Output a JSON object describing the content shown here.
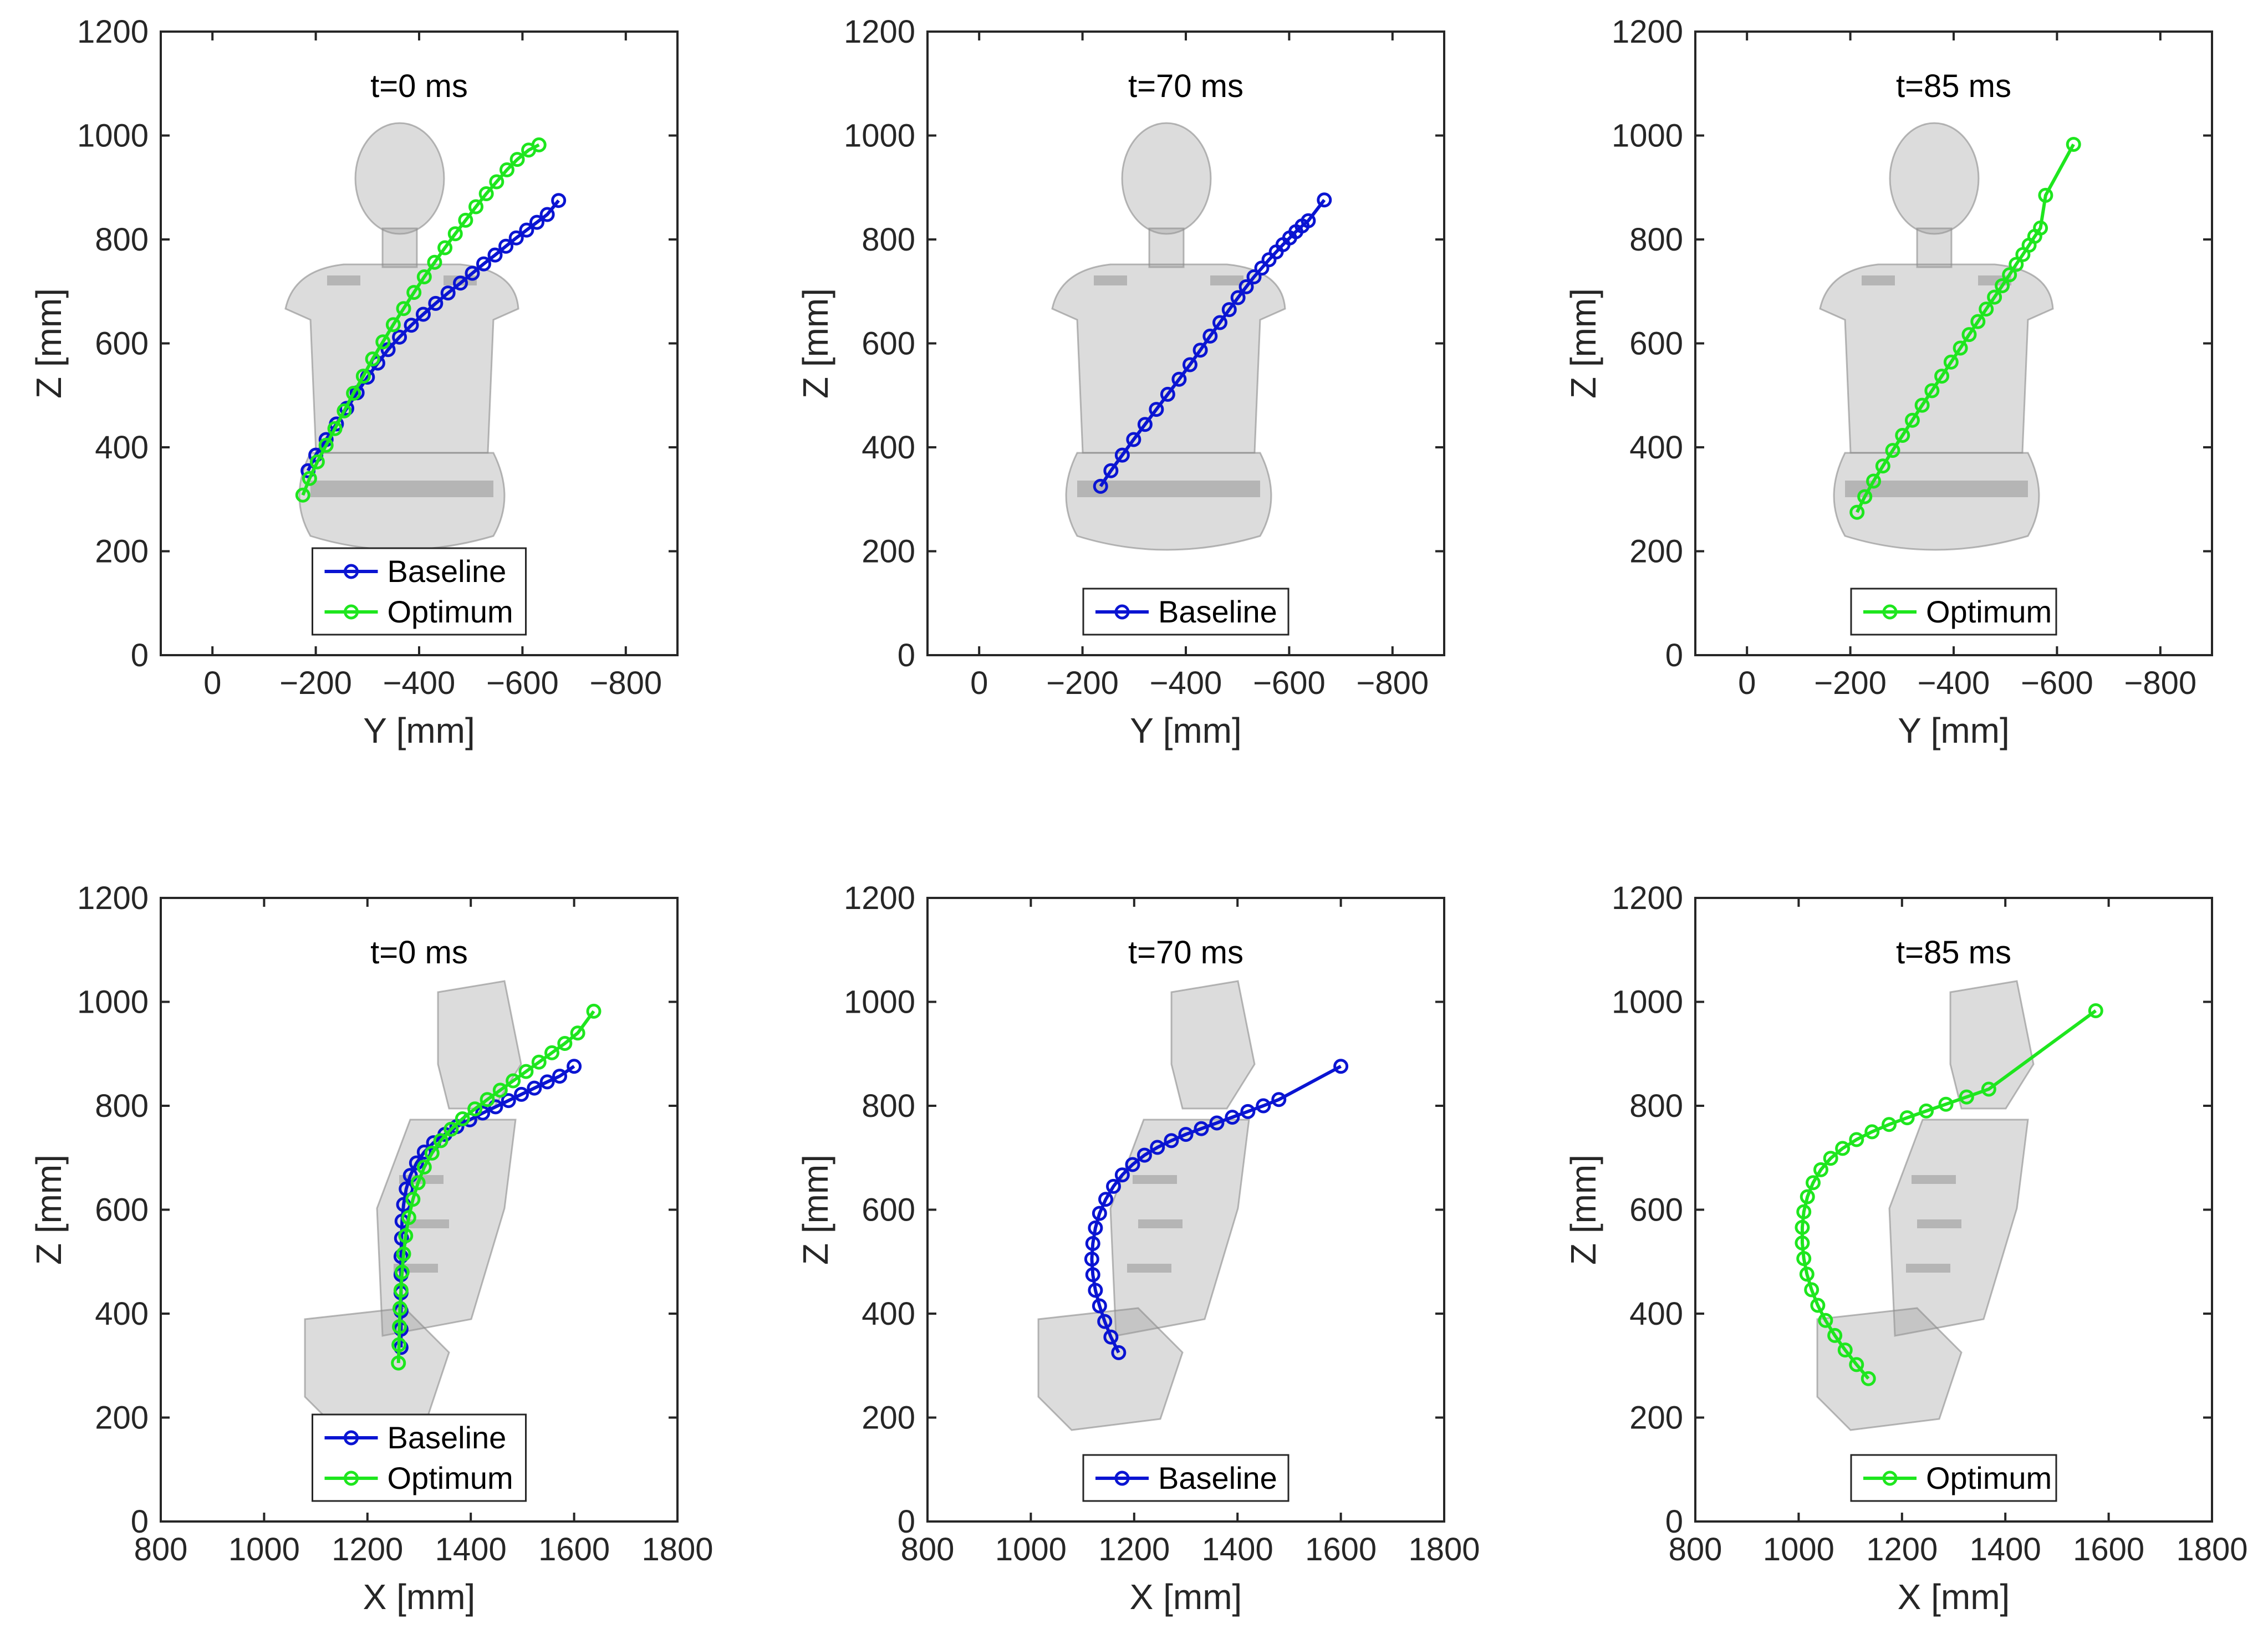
{
  "figure": {
    "layout": "2 rows x 3 columns"
  },
  "colors": {
    "baseline": "#0a14d2",
    "optimum": "#1ee61e",
    "axis": "#262626"
  },
  "chart_data": [
    {
      "type": "line",
      "title": "t=0 ms",
      "xlabel": "Y [mm]",
      "ylabel": "Z [mm]",
      "xlim": [
        100,
        -900
      ],
      "ylim": [
        0,
        1200
      ],
      "xticks": [
        0,
        -200,
        -400,
        -600,
        -800
      ],
      "xtick_labels": [
        "0",
        "−200",
        "−400",
        "−600",
        "−800"
      ],
      "yticks": [
        0,
        200,
        400,
        600,
        800,
        1000,
        1200
      ],
      "ytick_labels": [
        "0",
        "200",
        "400",
        "600",
        "800",
        "1000",
        "1200"
      ],
      "legend": [
        "Baseline",
        "Optimum"
      ],
      "legend_position": "bottom-center",
      "view": "front",
      "series": [
        {
          "name": "Baseline",
          "color": "baseline",
          "x": [
            -185,
            -200,
            -220,
            -240,
            -260,
            -280,
            -300,
            -320,
            -340,
            -362,
            -385,
            -408,
            -432,
            -456,
            -480,
            -503,
            -525,
            -547,
            -568,
            -588,
            -608,
            -628,
            -648,
            -670
          ],
          "y": [
            355,
            385,
            415,
            445,
            475,
            505,
            535,
            562,
            588,
            612,
            635,
            656,
            677,
            697,
            716,
            735,
            753,
            770,
            787,
            803,
            818,
            833,
            848,
            875
          ]
        },
        {
          "name": "Optimum",
          "color": "optimum",
          "x": [
            -175,
            -188,
            -203,
            -220,
            -237,
            -255,
            -273,
            -292,
            -310,
            -330,
            -350,
            -370,
            -390,
            -410,
            -430,
            -450,
            -470,
            -490,
            -510,
            -530,
            -550,
            -570,
            -590,
            -612,
            -632
          ],
          "y": [
            308,
            340,
            372,
            404,
            436,
            470,
            504,
            537,
            570,
            603,
            636,
            667,
            698,
            728,
            756,
            784,
            811,
            837,
            863,
            888,
            911,
            934,
            954,
            972,
            982
          ]
        }
      ]
    },
    {
      "type": "line",
      "title": "t=70 ms",
      "xlabel": "Y [mm]",
      "ylabel": "Z [mm]",
      "xlim": [
        100,
        -900
      ],
      "ylim": [
        0,
        1200
      ],
      "xticks": [
        0,
        -200,
        -400,
        -600,
        -800
      ],
      "xtick_labels": [
        "0",
        "−200",
        "−400",
        "−600",
        "−800"
      ],
      "yticks": [
        0,
        200,
        400,
        600,
        800,
        1000,
        1200
      ],
      "ytick_labels": [
        "0",
        "200",
        "400",
        "600",
        "800",
        "1000",
        "1200"
      ],
      "legend": [
        "Baseline"
      ],
      "legend_position": "bottom-center",
      "view": "front",
      "series": [
        {
          "name": "Baseline",
          "color": "baseline",
          "x": [
            -235,
            -255,
            -277,
            -299,
            -321,
            -343,
            -365,
            -387,
            -408,
            -428,
            -447,
            -466,
            -484,
            -501,
            -517,
            -532,
            -547,
            -561,
            -575,
            -588,
            -601,
            -613,
            -625,
            -637,
            -668
          ],
          "y": [
            325,
            355,
            385,
            415,
            444,
            473,
            502,
            531,
            559,
            587,
            614,
            640,
            665,
            688,
            709,
            728,
            745,
            761,
            776,
            790,
            803,
            815,
            826,
            836,
            876
          ]
        }
      ]
    },
    {
      "type": "line",
      "title": "t=85 ms",
      "xlabel": "Y [mm]",
      "ylabel": "Z [mm]",
      "xlim": [
        100,
        -900
      ],
      "ylim": [
        0,
        1200
      ],
      "xticks": [
        0,
        -200,
        -400,
        -600,
        -800
      ],
      "xtick_labels": [
        "0",
        "−200",
        "−400",
        "−600",
        "−800"
      ],
      "yticks": [
        0,
        200,
        400,
        600,
        800,
        1000,
        1200
      ],
      "ytick_labels": [
        "0",
        "200",
        "400",
        "600",
        "800",
        "1000",
        "1200"
      ],
      "legend": [
        "Optimum"
      ],
      "legend_position": "bottom-center",
      "view": "front",
      "series": [
        {
          "name": "Optimum",
          "color": "optimum",
          "x": [
            -213,
            -228,
            -245,
            -263,
            -282,
            -301,
            -320,
            -339,
            -358,
            -377,
            -395,
            -413,
            -430,
            -447,
            -463,
            -479,
            -494,
            -508,
            -521,
            -534,
            -546,
            -557,
            -568,
            -578,
            -632
          ],
          "y": [
            275,
            305,
            335,
            364,
            394,
            423,
            452,
            481,
            509,
            537,
            564,
            591,
            617,
            642,
            666,
            689,
            711,
            732,
            752,
            771,
            789,
            806,
            822,
            885,
            983
          ]
        }
      ]
    },
    {
      "type": "line",
      "title": "t=0 ms",
      "xlabel": "X [mm]",
      "ylabel": "Z [mm]",
      "xlim": [
        800,
        1800
      ],
      "ylim": [
        0,
        1200
      ],
      "xticks": [
        800,
        1000,
        1200,
        1400,
        1600,
        1800
      ],
      "xtick_labels": [
        "800",
        "1000",
        "1200",
        "1400",
        "1600",
        "1800"
      ],
      "yticks": [
        0,
        200,
        400,
        600,
        800,
        1000,
        1200
      ],
      "ytick_labels": [
        "0",
        "200",
        "400",
        "600",
        "800",
        "1000",
        "1200"
      ],
      "legend": [
        "Baseline",
        "Optimum"
      ],
      "legend_position": "bottom-center",
      "view": "side",
      "series": [
        {
          "name": "Baseline",
          "color": "baseline",
          "x": [
            1265,
            1265,
            1265,
            1265,
            1265,
            1265,
            1266,
            1267,
            1270,
            1275,
            1283,
            1295,
            1310,
            1328,
            1350,
            1373,
            1398,
            1423,
            1448,
            1473,
            1498,
            1523,
            1548,
            1572,
            1600
          ],
          "y": [
            335,
            370,
            405,
            440,
            475,
            510,
            545,
            578,
            610,
            640,
            666,
            690,
            711,
            729,
            745,
            760,
            773,
            786,
            798,
            810,
            822,
            834,
            846,
            857,
            876
          ]
        },
        {
          "name": "Optimum",
          "color": "optimum",
          "x": [
            1260,
            1261,
            1262,
            1263,
            1265,
            1267,
            1270,
            1274,
            1280,
            1288,
            1298,
            1310,
            1325,
            1342,
            1362,
            1384,
            1408,
            1432,
            1457,
            1482,
            1507,
            1532,
            1557,
            1582,
            1607,
            1638
          ],
          "y": [
            305,
            340,
            375,
            410,
            445,
            480,
            515,
            550,
            585,
            620,
            652,
            682,
            709,
            733,
            755,
            775,
            794,
            812,
            830,
            848,
            866,
            884,
            902,
            920,
            940,
            982
          ]
        }
      ]
    },
    {
      "type": "line",
      "title": "t=70 ms",
      "xlabel": "X [mm]",
      "ylabel": "Z [mm]",
      "xlim": [
        800,
        1800
      ],
      "ylim": [
        0,
        1200
      ],
      "xticks": [
        800,
        1000,
        1200,
        1400,
        1600,
        1800
      ],
      "xtick_labels": [
        "800",
        "1000",
        "1200",
        "1400",
        "1600",
        "1800"
      ],
      "yticks": [
        0,
        200,
        400,
        600,
        800,
        1000,
        1200
      ],
      "ytick_labels": [
        "0",
        "200",
        "400",
        "600",
        "800",
        "1000",
        "1200"
      ],
      "legend": [
        "Baseline"
      ],
      "legend_position": "bottom-center",
      "view": "side",
      "series": [
        {
          "name": "Baseline",
          "color": "baseline",
          "x": [
            1170,
            1155,
            1143,
            1133,
            1125,
            1120,
            1118,
            1120,
            1125,
            1133,
            1145,
            1160,
            1177,
            1197,
            1220,
            1245,
            1272,
            1300,
            1330,
            1360,
            1390,
            1420,
            1450,
            1480,
            1600
          ],
          "y": [
            325,
            355,
            385,
            415,
            445,
            475,
            505,
            535,
            565,
            593,
            620,
            645,
            667,
            687,
            705,
            720,
            733,
            745,
            756,
            767,
            778,
            789,
            800,
            812,
            876
          ]
        }
      ]
    },
    {
      "type": "line",
      "title": "t=85 ms",
      "xlabel": "X [mm]",
      "ylabel": "Z [mm]",
      "xlim": [
        800,
        1800
      ],
      "ylim": [
        0,
        1200
      ],
      "xticks": [
        800,
        1000,
        1200,
        1400,
        1600,
        1800
      ],
      "xtick_labels": [
        "800",
        "1000",
        "1200",
        "1400",
        "1600",
        "1800"
      ],
      "yticks": [
        0,
        200,
        400,
        600,
        800,
        1000,
        1200
      ],
      "ytick_labels": [
        "0",
        "200",
        "400",
        "600",
        "800",
        "1000",
        "1200"
      ],
      "legend": [
        "Optimum"
      ],
      "legend_position": "bottom-center",
      "view": "side",
      "series": [
        {
          "name": "Optimum",
          "color": "optimum",
          "x": [
            1135,
            1112,
            1090,
            1070,
            1052,
            1037,
            1025,
            1016,
            1010,
            1007,
            1007,
            1010,
            1017,
            1028,
            1043,
            1062,
            1085,
            1112,
            1142,
            1175,
            1210,
            1247,
            1285,
            1325,
            1368,
            1575
          ],
          "y": [
            275,
            302,
            330,
            358,
            387,
            416,
            446,
            476,
            506,
            536,
            566,
            596,
            625,
            652,
            677,
            699,
            718,
            735,
            750,
            764,
            777,
            790,
            803,
            817,
            832,
            983
          ]
        }
      ]
    }
  ]
}
